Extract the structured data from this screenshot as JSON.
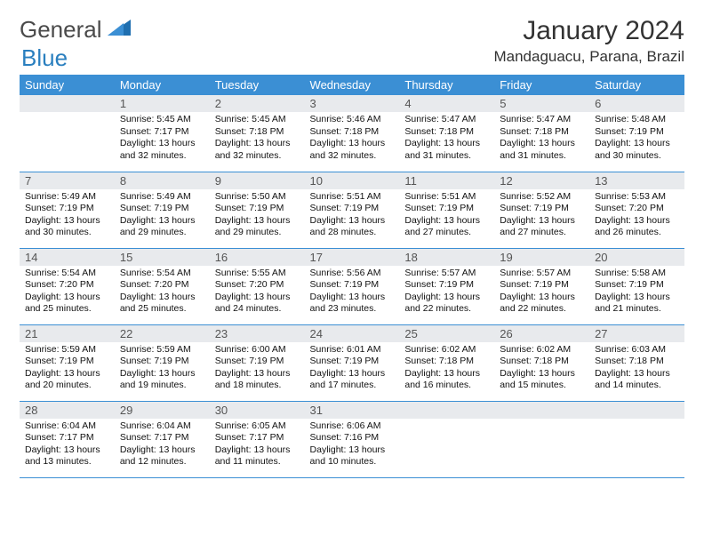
{
  "brand": {
    "part1": "General",
    "part2": "Blue"
  },
  "title": "January 2024",
  "location": "Mandaguacu, Parana, Brazil",
  "headerColor": "#3b8fd4",
  "dayHeaders": [
    "Sunday",
    "Monday",
    "Tuesday",
    "Wednesday",
    "Thursday",
    "Friday",
    "Saturday"
  ],
  "weeks": [
    [
      {
        "n": "",
        "sr": "",
        "ss": "",
        "dl": ""
      },
      {
        "n": "1",
        "sr": "Sunrise: 5:45 AM",
        "ss": "Sunset: 7:17 PM",
        "dl": "Daylight: 13 hours and 32 minutes."
      },
      {
        "n": "2",
        "sr": "Sunrise: 5:45 AM",
        "ss": "Sunset: 7:18 PM",
        "dl": "Daylight: 13 hours and 32 minutes."
      },
      {
        "n": "3",
        "sr": "Sunrise: 5:46 AM",
        "ss": "Sunset: 7:18 PM",
        "dl": "Daylight: 13 hours and 32 minutes."
      },
      {
        "n": "4",
        "sr": "Sunrise: 5:47 AM",
        "ss": "Sunset: 7:18 PM",
        "dl": "Daylight: 13 hours and 31 minutes."
      },
      {
        "n": "5",
        "sr": "Sunrise: 5:47 AM",
        "ss": "Sunset: 7:18 PM",
        "dl": "Daylight: 13 hours and 31 minutes."
      },
      {
        "n": "6",
        "sr": "Sunrise: 5:48 AM",
        "ss": "Sunset: 7:19 PM",
        "dl": "Daylight: 13 hours and 30 minutes."
      }
    ],
    [
      {
        "n": "7",
        "sr": "Sunrise: 5:49 AM",
        "ss": "Sunset: 7:19 PM",
        "dl": "Daylight: 13 hours and 30 minutes."
      },
      {
        "n": "8",
        "sr": "Sunrise: 5:49 AM",
        "ss": "Sunset: 7:19 PM",
        "dl": "Daylight: 13 hours and 29 minutes."
      },
      {
        "n": "9",
        "sr": "Sunrise: 5:50 AM",
        "ss": "Sunset: 7:19 PM",
        "dl": "Daylight: 13 hours and 29 minutes."
      },
      {
        "n": "10",
        "sr": "Sunrise: 5:51 AM",
        "ss": "Sunset: 7:19 PM",
        "dl": "Daylight: 13 hours and 28 minutes."
      },
      {
        "n": "11",
        "sr": "Sunrise: 5:51 AM",
        "ss": "Sunset: 7:19 PM",
        "dl": "Daylight: 13 hours and 27 minutes."
      },
      {
        "n": "12",
        "sr": "Sunrise: 5:52 AM",
        "ss": "Sunset: 7:19 PM",
        "dl": "Daylight: 13 hours and 27 minutes."
      },
      {
        "n": "13",
        "sr": "Sunrise: 5:53 AM",
        "ss": "Sunset: 7:20 PM",
        "dl": "Daylight: 13 hours and 26 minutes."
      }
    ],
    [
      {
        "n": "14",
        "sr": "Sunrise: 5:54 AM",
        "ss": "Sunset: 7:20 PM",
        "dl": "Daylight: 13 hours and 25 minutes."
      },
      {
        "n": "15",
        "sr": "Sunrise: 5:54 AM",
        "ss": "Sunset: 7:20 PM",
        "dl": "Daylight: 13 hours and 25 minutes."
      },
      {
        "n": "16",
        "sr": "Sunrise: 5:55 AM",
        "ss": "Sunset: 7:20 PM",
        "dl": "Daylight: 13 hours and 24 minutes."
      },
      {
        "n": "17",
        "sr": "Sunrise: 5:56 AM",
        "ss": "Sunset: 7:19 PM",
        "dl": "Daylight: 13 hours and 23 minutes."
      },
      {
        "n": "18",
        "sr": "Sunrise: 5:57 AM",
        "ss": "Sunset: 7:19 PM",
        "dl": "Daylight: 13 hours and 22 minutes."
      },
      {
        "n": "19",
        "sr": "Sunrise: 5:57 AM",
        "ss": "Sunset: 7:19 PM",
        "dl": "Daylight: 13 hours and 22 minutes."
      },
      {
        "n": "20",
        "sr": "Sunrise: 5:58 AM",
        "ss": "Sunset: 7:19 PM",
        "dl": "Daylight: 13 hours and 21 minutes."
      }
    ],
    [
      {
        "n": "21",
        "sr": "Sunrise: 5:59 AM",
        "ss": "Sunset: 7:19 PM",
        "dl": "Daylight: 13 hours and 20 minutes."
      },
      {
        "n": "22",
        "sr": "Sunrise: 5:59 AM",
        "ss": "Sunset: 7:19 PM",
        "dl": "Daylight: 13 hours and 19 minutes."
      },
      {
        "n": "23",
        "sr": "Sunrise: 6:00 AM",
        "ss": "Sunset: 7:19 PM",
        "dl": "Daylight: 13 hours and 18 minutes."
      },
      {
        "n": "24",
        "sr": "Sunrise: 6:01 AM",
        "ss": "Sunset: 7:19 PM",
        "dl": "Daylight: 13 hours and 17 minutes."
      },
      {
        "n": "25",
        "sr": "Sunrise: 6:02 AM",
        "ss": "Sunset: 7:18 PM",
        "dl": "Daylight: 13 hours and 16 minutes."
      },
      {
        "n": "26",
        "sr": "Sunrise: 6:02 AM",
        "ss": "Sunset: 7:18 PM",
        "dl": "Daylight: 13 hours and 15 minutes."
      },
      {
        "n": "27",
        "sr": "Sunrise: 6:03 AM",
        "ss": "Sunset: 7:18 PM",
        "dl": "Daylight: 13 hours and 14 minutes."
      }
    ],
    [
      {
        "n": "28",
        "sr": "Sunrise: 6:04 AM",
        "ss": "Sunset: 7:17 PM",
        "dl": "Daylight: 13 hours and 13 minutes."
      },
      {
        "n": "29",
        "sr": "Sunrise: 6:04 AM",
        "ss": "Sunset: 7:17 PM",
        "dl": "Daylight: 13 hours and 12 minutes."
      },
      {
        "n": "30",
        "sr": "Sunrise: 6:05 AM",
        "ss": "Sunset: 7:17 PM",
        "dl": "Daylight: 13 hours and 11 minutes."
      },
      {
        "n": "31",
        "sr": "Sunrise: 6:06 AM",
        "ss": "Sunset: 7:16 PM",
        "dl": "Daylight: 13 hours and 10 minutes."
      },
      {
        "n": "",
        "sr": "",
        "ss": "",
        "dl": ""
      },
      {
        "n": "",
        "sr": "",
        "ss": "",
        "dl": ""
      },
      {
        "n": "",
        "sr": "",
        "ss": "",
        "dl": ""
      }
    ]
  ]
}
